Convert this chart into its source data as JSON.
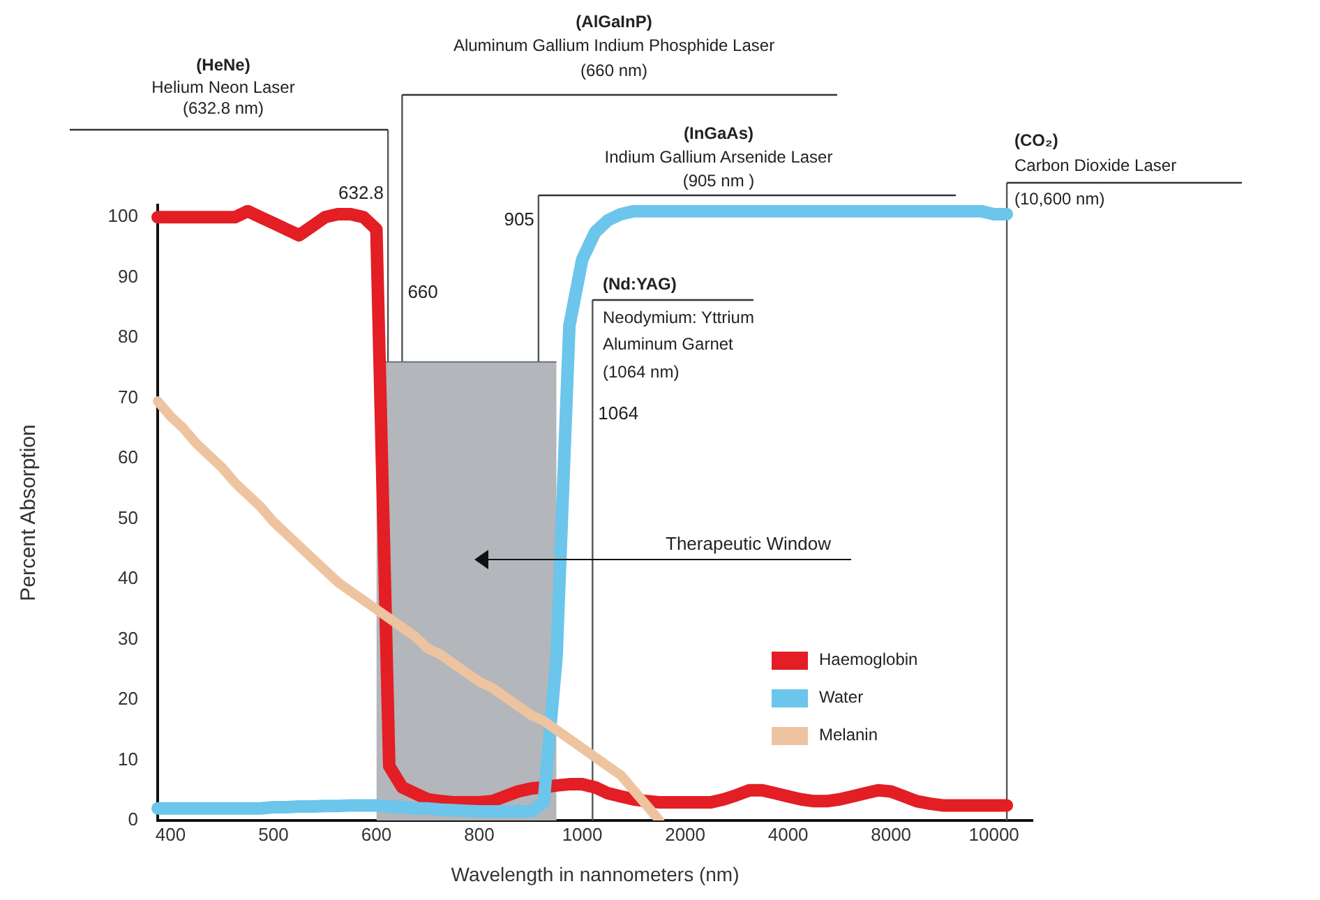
{
  "chart_data": {
    "type": "line",
    "xlabel": "Wavelength in nannometers (nm)",
    "ylabel": "Percent Absorption",
    "categories": [
      null,
      "400",
      null,
      null,
      null,
      null,
      null,
      null,
      null,
      "500",
      null,
      null,
      null,
      null,
      null,
      null,
      null,
      "600",
      null,
      null,
      null,
      null,
      null,
      null,
      null,
      "800",
      null,
      null,
      null,
      null,
      null,
      null,
      null,
      "1000",
      null,
      null,
      null,
      null,
      null,
      null,
      null,
      "2000",
      null,
      null,
      null,
      null,
      null,
      null,
      null,
      "4000",
      null,
      null,
      null,
      null,
      null,
      null,
      null,
      "8000",
      null,
      null,
      null,
      null,
      null,
      null,
      null,
      "10000",
      null,
      null,
      null
    ],
    "ylim": [
      0,
      102
    ],
    "yticks": [
      0,
      10,
      20,
      30,
      40,
      50,
      60,
      70,
      80,
      90,
      100
    ],
    "grid": false,
    "legend": "bottom right",
    "marker": "none",
    "line_style": "solid",
    "series": [
      {
        "type": "area",
        "color": "#b3b6ba",
        "values": [
          null,
          null,
          null,
          null,
          null,
          null,
          null,
          null,
          null,
          null,
          null,
          null,
          null,
          null,
          null,
          null,
          null,
          76,
          76,
          76,
          76,
          76,
          76,
          76,
          76,
          76,
          76,
          76,
          76,
          76,
          76,
          76,
          null,
          null,
          null,
          null,
          null,
          null,
          null,
          null,
          null,
          null,
          null,
          null,
          null,
          null,
          null,
          null,
          null,
          null,
          null,
          null,
          null,
          null,
          null,
          null,
          null,
          null,
          null,
          null,
          null,
          null,
          null,
          null,
          null,
          null,
          null,
          null,
          null
        ]
      },
      {
        "name": "Haemoglobin",
        "color": "#e31e24",
        "values": [
          100,
          100,
          100,
          100,
          100,
          100,
          100,
          101,
          100,
          99,
          98,
          97,
          98.5,
          100,
          100.5,
          100.5,
          100,
          98,
          9,
          5.5,
          4.5,
          3.5,
          3.2,
          3,
          3,
          3,
          3.2,
          4,
          4.8,
          5.3,
          5.5,
          5.8,
          6,
          6,
          5.5,
          4.5,
          4,
          3.5,
          3.2,
          3,
          3,
          3,
          3,
          3,
          3.5,
          4.2,
          5,
          5,
          4.5,
          4,
          3.5,
          3.2,
          3.2,
          3.5,
          4,
          4.5,
          5,
          4.8,
          4,
          3.2,
          2.8,
          2.5,
          2.5,
          2.5,
          2.5,
          2.5,
          2.5,
          null,
          null
        ]
      },
      {
        "name": "Water",
        "color": "#6cc5ea",
        "values": [
          2,
          2,
          2,
          2,
          2,
          2,
          2,
          2,
          2,
          2.2,
          2.2,
          2.3,
          2.3,
          2.4,
          2.4,
          2.5,
          2.5,
          2.5,
          2.3,
          2.2,
          2,
          2,
          1.8,
          1.7,
          1.6,
          1.5,
          1.5,
          1.5,
          1.5,
          1.5,
          3,
          27,
          82,
          93,
          97.5,
          99.5,
          100.5,
          101,
          101,
          101,
          101,
          101,
          101,
          101,
          101,
          101,
          101,
          101,
          101,
          101,
          101,
          101,
          101,
          101,
          101,
          101,
          101,
          101,
          101,
          101,
          101,
          101,
          101,
          101,
          101,
          100.5,
          100.5,
          null,
          null
        ]
      },
      {
        "name": "Melanin",
        "color": "#eec4a0",
        "values": [
          69.5,
          67,
          65,
          62.5,
          60.5,
          58.5,
          56,
          54,
          52,
          49.5,
          47.5,
          45.5,
          43.5,
          41.5,
          39.5,
          38,
          36.5,
          35,
          33.5,
          32,
          30.5,
          28.5,
          27.5,
          26,
          24.5,
          23,
          22,
          20.5,
          19,
          17.5,
          16.5,
          15,
          13.5,
          12,
          10.5,
          9,
          7.5,
          5,
          2.5,
          0,
          null,
          null,
          null,
          null,
          null,
          null,
          null,
          null,
          null,
          null,
          null,
          null,
          null,
          null,
          null,
          null,
          null,
          null,
          null,
          null,
          null,
          null,
          null,
          null,
          null,
          null,
          null,
          null,
          null
        ]
      }
    ],
    "annotations": [
      "(HeNe)\nHelium Neon Laser\n(632.8 nm)",
      "(AlGaInP)\nAluminum Gallium Indium Phosphide Laser\n(660 nm)",
      "(InGaAs)\nIndium Gallium Arsenide Laser\n(905 nm )",
      "(Nd:YAG)\nNeodymium: Yttrium\nAluminum Garnet\n(1064 nm)",
      "(CO₂)\nCarbon Dioxide Laser\n(10,600 nm)",
      "632.8",
      "660",
      "905",
      "1064",
      "Therapeutic Window"
    ]
  }
}
